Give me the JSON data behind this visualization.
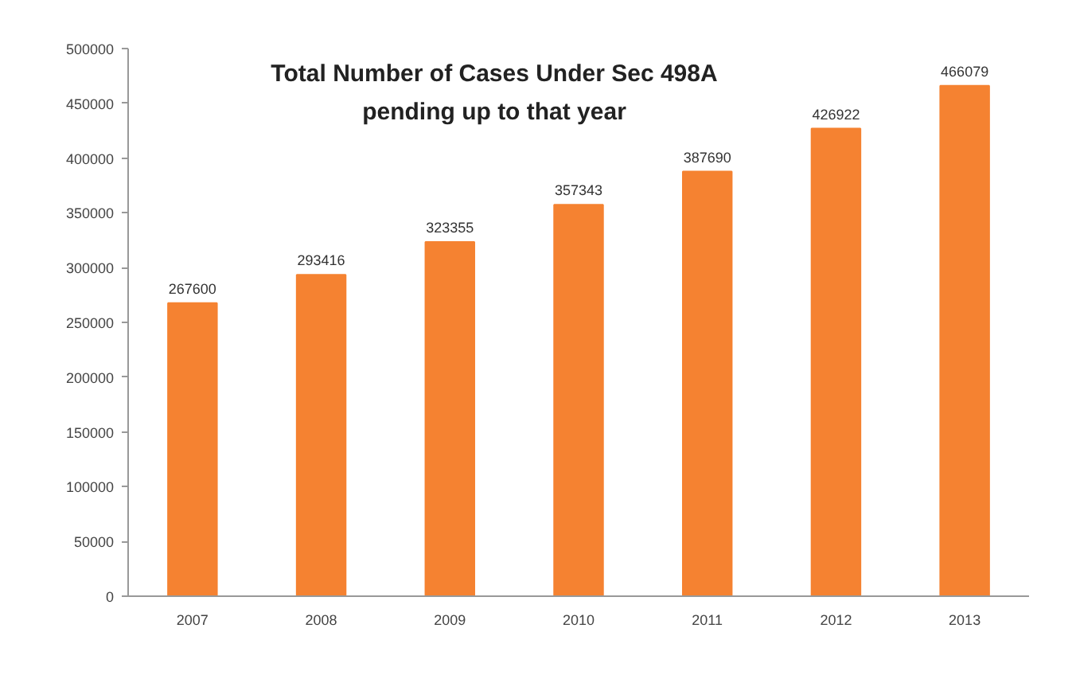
{
  "chart_data": {
    "type": "bar",
    "title": "Total Number of Cases Under Sec 498A",
    "subtitle": "pending up to that year",
    "categories": [
      "2007",
      "2008",
      "2009",
      "2010",
      "2011",
      "2012",
      "2013"
    ],
    "values": [
      267600,
      293416,
      323355,
      357343,
      387690,
      426922,
      466079
    ],
    "color": "#f58231",
    "ylim": [
      0,
      500000
    ],
    "yticks": [
      0,
      50000,
      100000,
      150000,
      200000,
      250000,
      300000,
      350000,
      400000,
      450000,
      500000
    ],
    "grid": false,
    "data_labels": true
  }
}
